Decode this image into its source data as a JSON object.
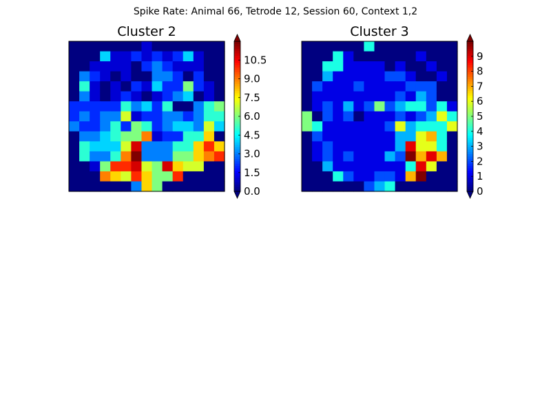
{
  "figure": {
    "title": "Spike Rate: Animal 66, Tetrode 12, Session 60, Context 1,2"
  },
  "chart_data": [
    {
      "type": "heatmap",
      "title": "Cluster 2",
      "colormap": "jet",
      "vmin": 0,
      "vmax": 12,
      "colorbar_extend": "both",
      "colorbar_ticks": [
        0.0,
        1.5,
        3.0,
        4.5,
        6.0,
        7.5,
        9.0,
        10.5
      ],
      "colorbar_tick_labels": [
        "0.0",
        "1.5",
        "3.0",
        "4.5",
        "6.0",
        "7.5",
        "9.0",
        "10.5"
      ],
      "grid_rows": 15,
      "grid_cols": 15,
      "values": [
        [
          0,
          0,
          0,
          0,
          0,
          0,
          0,
          1,
          0,
          0,
          0,
          0,
          0,
          0,
          0
        ],
        [
          0,
          0,
          0,
          4,
          1,
          1,
          2,
          1,
          2,
          1,
          2,
          4,
          1,
          0,
          0
        ],
        [
          0,
          0,
          1,
          1,
          1,
          1,
          0,
          2,
          3,
          2,
          1,
          1,
          1,
          0,
          0
        ],
        [
          0,
          3,
          2,
          1,
          0,
          1,
          0,
          0,
          3,
          3,
          2,
          0,
          2,
          0,
          0
        ],
        [
          0,
          5,
          1,
          0,
          1,
          0,
          2,
          1,
          4,
          2,
          2,
          6,
          2,
          1,
          0
        ],
        [
          0,
          3,
          1,
          0,
          1,
          2,
          1,
          0,
          1,
          2,
          3,
          4,
          0,
          1,
          0
        ],
        [
          2,
          2,
          2,
          2,
          2,
          5,
          3,
          4,
          2,
          5,
          0,
          0,
          3,
          5,
          6
        ],
        [
          2,
          3,
          2,
          3,
          3,
          7,
          1,
          2,
          2,
          3,
          3,
          2,
          3,
          5,
          5
        ],
        [
          3,
          2,
          2,
          3,
          5,
          2,
          6,
          5,
          2,
          3,
          4,
          4,
          3,
          7,
          4
        ],
        [
          0,
          3,
          3,
          4,
          5,
          6,
          6,
          9,
          1,
          2,
          2,
          5,
          5,
          8,
          0
        ],
        [
          0,
          5,
          4,
          4,
          4,
          7,
          11,
          3,
          3,
          3,
          5,
          5,
          8,
          10,
          8
        ],
        [
          0,
          5,
          3,
          3,
          5,
          9,
          12,
          3,
          3,
          3,
          6,
          6,
          8,
          9,
          10
        ],
        [
          0,
          0,
          1,
          6,
          10,
          10,
          11,
          7,
          6,
          11,
          8,
          7,
          7,
          0,
          0
        ],
        [
          0,
          0,
          0,
          9,
          8,
          7,
          10,
          8,
          6,
          6,
          10,
          0,
          0,
          0,
          0
        ],
        [
          0,
          0,
          0,
          0,
          0,
          0,
          3,
          8,
          6,
          0,
          0,
          0,
          0,
          0,
          0
        ]
      ]
    },
    {
      "type": "heatmap",
      "title": "Cluster 3",
      "colormap": "jet",
      "vmin": 0,
      "vmax": 10,
      "colorbar_extend": "both",
      "colorbar_ticks": [
        0,
        1,
        2,
        3,
        4,
        5,
        6,
        7,
        8,
        9
      ],
      "colorbar_tick_labels": [
        "0",
        "1",
        "2",
        "3",
        "4",
        "5",
        "6",
        "7",
        "8",
        "9"
      ],
      "grid_rows": 15,
      "grid_cols": 15,
      "values": [
        [
          0,
          0,
          0,
          0,
          0,
          0,
          4,
          0,
          0,
          0,
          0,
          0,
          0,
          0,
          0
        ],
        [
          0,
          0,
          0,
          4,
          1,
          0,
          0,
          0,
          0,
          0,
          0,
          1,
          0,
          0,
          0
        ],
        [
          0,
          0,
          4,
          4,
          1,
          1,
          1,
          1,
          0,
          1,
          0,
          0,
          1,
          0,
          0
        ],
        [
          0,
          0,
          3,
          1,
          1,
          1,
          1,
          1,
          2,
          2,
          1,
          0,
          0,
          1,
          0
        ],
        [
          0,
          2,
          1,
          1,
          1,
          2,
          1,
          1,
          1,
          1,
          2,
          2,
          2,
          0,
          0
        ],
        [
          0,
          1,
          1,
          1,
          1,
          1,
          1,
          1,
          1,
          2,
          1,
          3,
          2,
          0,
          0
        ],
        [
          0,
          1,
          2,
          1,
          3,
          1,
          2,
          5,
          2,
          3,
          4,
          4,
          2,
          4,
          1
        ],
        [
          5,
          0,
          2,
          1,
          2,
          0,
          1,
          1,
          1,
          2,
          1,
          2,
          3,
          6,
          4
        ],
        [
          5,
          4,
          1,
          1,
          1,
          1,
          1,
          1,
          2,
          6,
          3,
          4,
          4,
          4,
          6
        ],
        [
          0,
          2,
          1,
          1,
          1,
          1,
          1,
          1,
          1,
          3,
          3,
          6,
          7,
          4,
          0
        ],
        [
          0,
          1,
          2,
          1,
          1,
          1,
          1,
          1,
          1,
          3,
          9,
          6,
          6,
          4,
          0
        ],
        [
          0,
          1,
          2,
          1,
          2,
          1,
          1,
          1,
          3,
          2,
          10,
          7,
          9,
          7,
          0
        ],
        [
          0,
          0,
          3,
          1,
          1,
          1,
          1,
          1,
          1,
          1,
          4,
          9,
          6,
          0,
          0
        ],
        [
          0,
          0,
          0,
          4,
          2,
          1,
          1,
          2,
          2,
          1,
          7,
          10,
          0,
          0,
          0
        ],
        [
          0,
          0,
          0,
          0,
          0,
          0,
          2,
          3,
          4,
          0,
          0,
          0,
          0,
          0,
          0
        ]
      ]
    }
  ]
}
